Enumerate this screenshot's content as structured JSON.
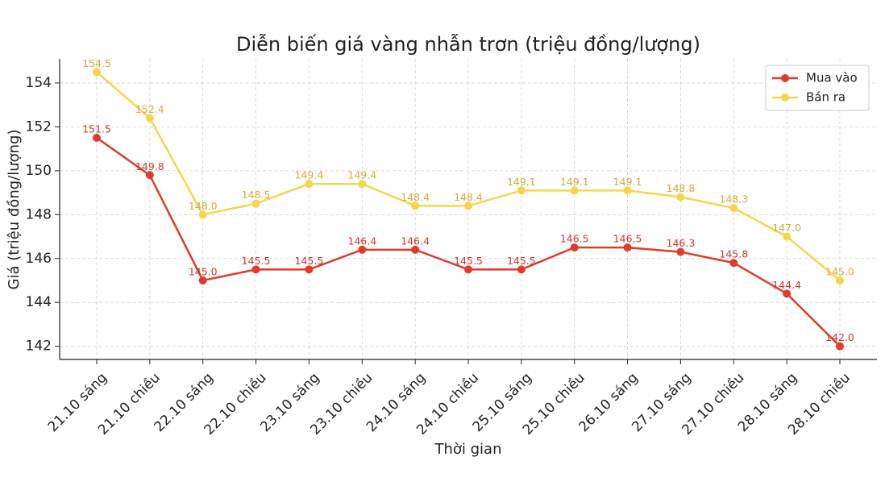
{
  "chart_data": {
    "type": "line",
    "title": "Diễn biến giá vàng nhẫn trơn (triệu đồng/lượng)",
    "xlabel": "Thời gian",
    "ylabel": "Giá (triệu đồng/lượng)",
    "categories": [
      "21.10 sáng",
      "21.10 chiều",
      "22.10 sáng",
      "22.10 chiều",
      "23.10 sáng",
      "23.10 chiều",
      "24.10 sáng",
      "24.10 chiều",
      "25.10 sáng",
      "25.10 chiều",
      "26.10 sáng",
      "27.10 sáng",
      "27.10 chiều",
      "28.10 sáng",
      "28.10 chiều"
    ],
    "series": [
      {
        "name": "Mua vào",
        "color": "#e03b2c",
        "label_color": "#d6362a",
        "values": [
          151.5,
          149.8,
          145.0,
          145.5,
          145.5,
          146.4,
          146.4,
          145.5,
          145.5,
          146.5,
          146.5,
          146.3,
          145.8,
          144.4,
          142.0
        ],
        "value_labels": [
          "151.5",
          "149.8",
          "145.0",
          "145.5",
          "145.5",
          "146.4",
          "146.4",
          "145.5",
          "145.5",
          "146.5",
          "146.5",
          "146.3",
          "145.8",
          "144.4",
          "142.0"
        ]
      },
      {
        "name": "Bán ra",
        "color": "#f5d64b",
        "label_color": "#d9a83a",
        "values": [
          154.5,
          152.4,
          148.0,
          148.5,
          149.4,
          149.4,
          148.4,
          148.4,
          149.1,
          149.1,
          149.1,
          148.8,
          148.3,
          147.0,
          145.0
        ],
        "value_labels": [
          "154.5",
          "152.4",
          "148.0",
          "148.5",
          "149.4",
          "149.4",
          "148.4",
          "148.4",
          "149.1",
          "149.1",
          "149.1",
          "148.8",
          "148.3",
          "147.0",
          "145.0"
        ]
      }
    ],
    "ylim": [
      141.4,
      155.1
    ],
    "yticks": [
      142,
      144,
      146,
      148,
      150,
      152,
      154
    ],
    "grid": true,
    "legend": "upper right"
  }
}
